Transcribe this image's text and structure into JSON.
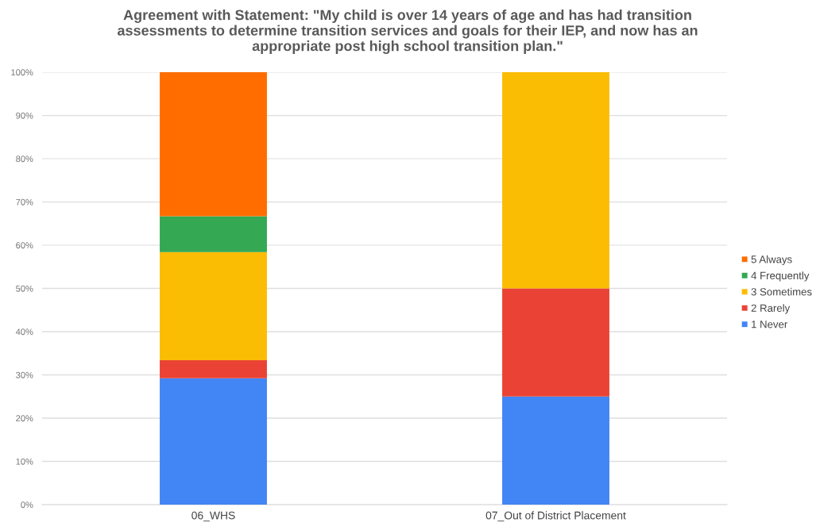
{
  "chart_data": {
    "type": "bar",
    "title": "Agreement with Statement: \"My child is over 14 years of age and has had transition assessments to determine transition services and goals for their IEP, and now has an appropriate post high school transition plan.\"",
    "categories": [
      "06_WHS",
      "07_Out of District Placement"
    ],
    "stacked": true,
    "series": [
      {
        "name": "1 Never",
        "color": "#4285f4",
        "values": [
          29.2,
          25.0
        ]
      },
      {
        "name": "2 Rarely",
        "color": "#ea4335",
        "values": [
          4.2,
          25.0
        ]
      },
      {
        "name": "3 Sometimes",
        "color": "#fbbc04",
        "values": [
          25.0,
          50.0
        ]
      },
      {
        "name": "4 Frequently",
        "color": "#34a853",
        "values": [
          8.3,
          0
        ]
      },
      {
        "name": "5 Always",
        "color": "#ff6d01",
        "values": [
          33.3,
          0
        ]
      }
    ],
    "ylim": [
      0,
      100
    ],
    "yticks": [
      {
        "value": 0,
        "label": "0%"
      },
      {
        "value": 10,
        "label": "10%"
      },
      {
        "value": 20,
        "label": "20%"
      },
      {
        "value": 30,
        "label": "30%"
      },
      {
        "value": 40,
        "label": "40%"
      },
      {
        "value": 50,
        "label": "50%"
      },
      {
        "value": 60,
        "label": "60%"
      },
      {
        "value": 70,
        "label": "70%"
      },
      {
        "value": 80,
        "label": "80%"
      },
      {
        "value": 90,
        "label": "90%"
      },
      {
        "value": 100,
        "label": "100%"
      }
    ],
    "grid": "y",
    "legend": "right"
  }
}
